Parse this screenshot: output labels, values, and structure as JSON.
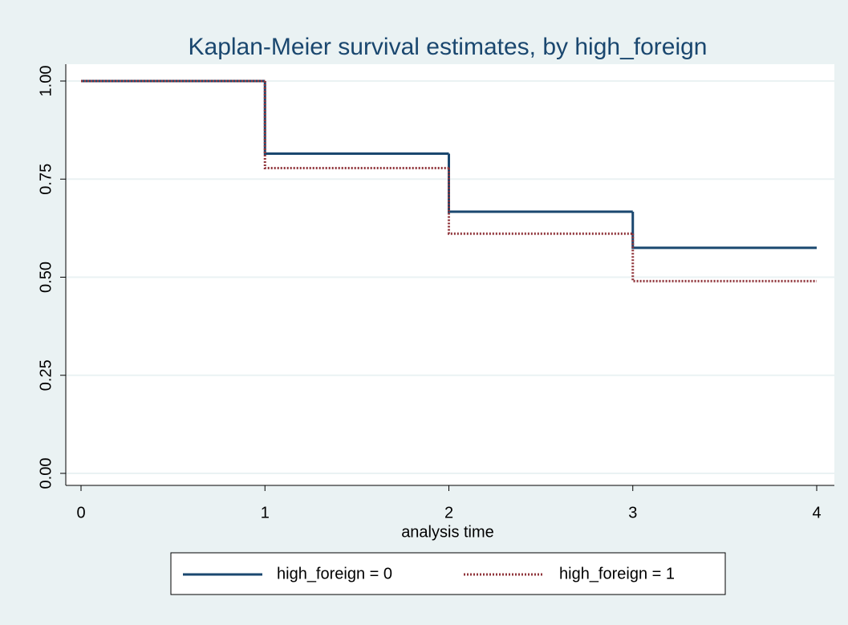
{
  "chart_data": {
    "type": "step",
    "title": "Kaplan-Meier survival estimates, by high_foreign",
    "x_label": "analysis time",
    "x": [
      0,
      1,
      2,
      3
    ],
    "series": [
      {
        "name": "high_foreign = 0",
        "color": "#1a476f",
        "values": [
          1,
          0.815,
          0.667,
          0.575
        ]
      },
      {
        "name": "high_foreign = 1",
        "color": "#90353b",
        "values": [
          1,
          0.778,
          0.611,
          0.49
        ]
      }
    ],
    "xlim": [
      0,
      4
    ],
    "xticks": [
      0,
      1,
      2,
      3,
      4
    ],
    "ylim": [
      0,
      1
    ],
    "yticks": [
      {
        "value": 0,
        "label": "0.00"
      },
      {
        "value": 0.25,
        "label": "0.25"
      },
      {
        "value": 0.5,
        "label": "0.50"
      },
      {
        "value": 0.75,
        "label": "0.75"
      },
      {
        "value": 1,
        "label": "1.00"
      }
    ],
    "grid": true
  }
}
